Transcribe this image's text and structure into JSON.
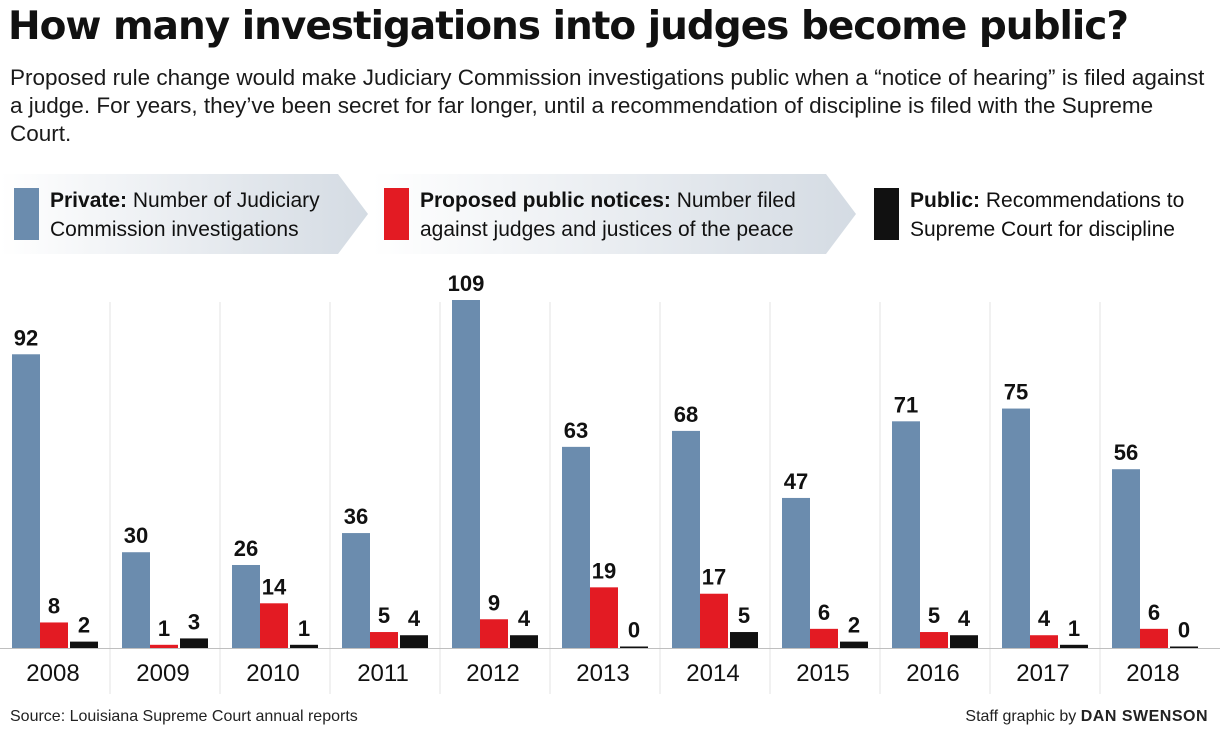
{
  "title": "How many investigations into judges become public?",
  "subtitle": "Proposed rule change would make Judiciary Commission investigations public when a “notice of hearing” is filed against a judge. For years, they’ve been secret for far longer, until a recommendation of discipline is filed with the Supreme Court.",
  "legend": [
    {
      "bold": "Private:",
      "line1_rest": " Number of Judiciary",
      "line2": "Commission investigations",
      "color": "#6b8cae"
    },
    {
      "bold": "Proposed public notices:",
      "line1_rest": " Number filed",
      "line2": "against judges and justices of the peace",
      "color": "#e31b23"
    },
    {
      "bold": "Public:",
      "line1_rest": " Recommendations to",
      "line2": "Supreme Court for discipline",
      "color": "#111111"
    }
  ],
  "colors": {
    "private": "#6b8cae",
    "proposed": "#e31b23",
    "public": "#111111",
    "band": "#dfe4ea"
  },
  "chart_data": {
    "type": "bar",
    "categories": [
      "2008",
      "2009",
      "2010",
      "2011",
      "2012",
      "2013",
      "2014",
      "2015",
      "2016",
      "2017",
      "2018"
    ],
    "series": [
      {
        "name": "Private: Number of Judiciary Commission investigations",
        "values": [
          92,
          30,
          26,
          36,
          109,
          63,
          68,
          47,
          71,
          75,
          56
        ]
      },
      {
        "name": "Proposed public notices: Number filed against judges and justices of the peace",
        "values": [
          8,
          1,
          14,
          5,
          9,
          19,
          17,
          6,
          5,
          4,
          6
        ]
      },
      {
        "name": "Public: Recommendations to Supreme Court for discipline",
        "values": [
          2,
          3,
          1,
          4,
          4,
          0,
          5,
          2,
          4,
          1,
          0
        ]
      }
    ],
    "ylim": [
      0,
      109
    ],
    "grid": false,
    "legend_position": "top"
  },
  "footer": {
    "source": "Source: Louisiana Supreme Court annual reports",
    "credit_prefix": "Staff graphic by ",
    "credit_name": "DAN SWENSON"
  }
}
